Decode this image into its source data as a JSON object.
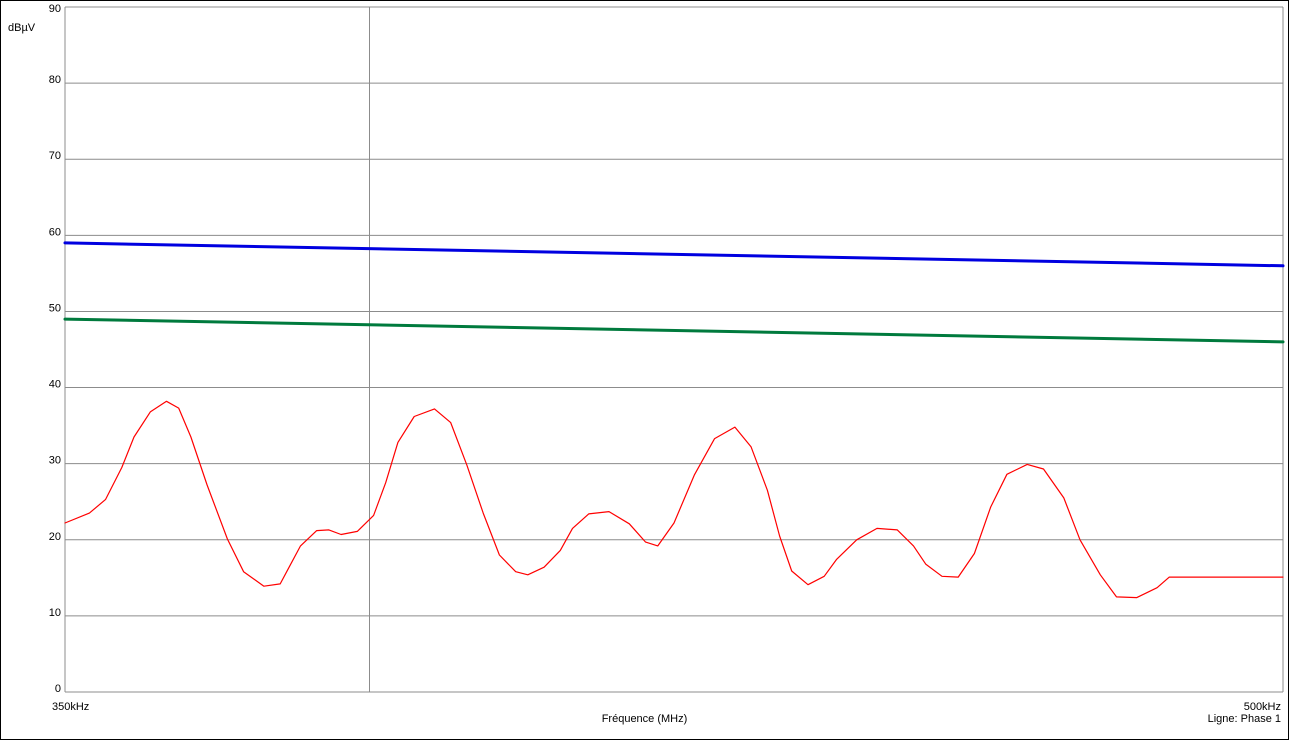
{
  "chart_data": {
    "type": "line",
    "ylabel": "dBµV",
    "xlabel": "Fréquence (MHz)",
    "x_tick_labels": [
      "350kHz",
      "500kHz"
    ],
    "x_range_khz": [
      350,
      500
    ],
    "ylim": [
      0,
      90
    ],
    "yticks": [
      0,
      10,
      20,
      30,
      40,
      50,
      60,
      70,
      80,
      90
    ],
    "grid": true,
    "cursor_x_khz": 387.5,
    "footer_label": "Ligne: Phase 1",
    "series": [
      {
        "color": "#0000e0",
        "x": [
          350,
          500
        ],
        "y": [
          59,
          56
        ]
      },
      {
        "color": "#007a3d",
        "x": [
          350,
          500
        ],
        "y": [
          49,
          46
        ]
      },
      {
        "color": "#ff0000",
        "x": [
          350,
          353,
          355,
          357,
          358.5,
          360.5,
          362.5,
          364,
          365.5,
          367.5,
          370,
          372,
          374.5,
          376.5,
          377.5,
          379,
          381,
          382.5,
          384,
          386,
          388,
          389.5,
          391,
          393,
          395.5,
          397.5,
          399.5,
          401.5,
          403.5,
          405.5,
          407,
          409,
          411,
          412.5,
          414.5,
          417,
          419.5,
          421.5,
          423,
          425,
          427.5,
          430,
          432.5,
          434.5,
          436.5,
          438,
          439.5,
          441.5,
          443.5,
          445,
          447.5,
          450,
          452.5,
          454.5,
          456,
          458,
          460,
          462,
          464,
          466,
          468.5,
          470.5,
          473,
          475,
          477.5,
          479.5,
          482,
          484.5,
          486,
          488.5,
          491,
          493.5,
          495.5,
          497.5,
          500
        ],
        "y": [
          22.2,
          23.5,
          25.3,
          29.5,
          33.5,
          36.8,
          38.2,
          37.3,
          33.5,
          27.2,
          20.1,
          15.8,
          13.9,
          14.2,
          16.2,
          19.2,
          21.2,
          21.3,
          20.7,
          21.1,
          23.2,
          27.5,
          32.8,
          36.2,
          37.2,
          35.4,
          29.8,
          23.5,
          18,
          15.8,
          15.4,
          16.4,
          18.6,
          21.5,
          23.4,
          23.7,
          22.1,
          19.7,
          19.2,
          22.2,
          28.5,
          33.3,
          34.8,
          32.2,
          26.5,
          20.5,
          15.9,
          14.1,
          15.2,
          17.4,
          20,
          21.5,
          21.3,
          19.2,
          16.8,
          15.2,
          15.1,
          18.2,
          24.3,
          28.6,
          29.9,
          29.3,
          25.5,
          20,
          15.4,
          12.5,
          12.4,
          13.7,
          15.1,
          15.1,
          15.1,
          15.1,
          15.1,
          15.1,
          15.1
        ]
      }
    ]
  }
}
